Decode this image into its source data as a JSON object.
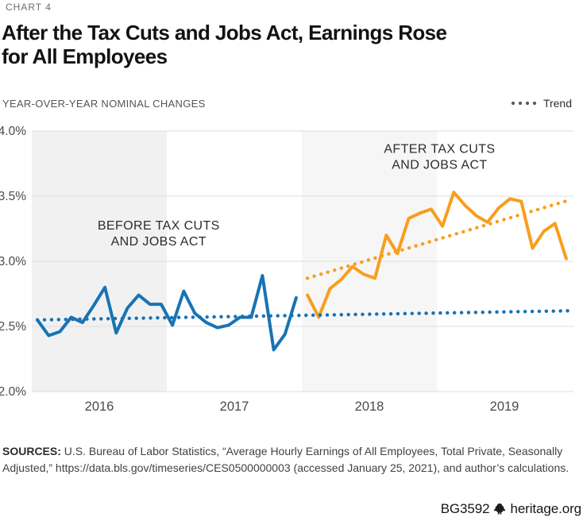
{
  "header": {
    "eyebrow": "CHART 4",
    "title_lines": [
      "After the Tax Cuts and Jobs Act, Earnings Rose",
      "for All Employees"
    ]
  },
  "subheader": {
    "kicker": "YEAR-OVER-YEAR NOMINAL CHANGES",
    "legend": {
      "label": "Trend",
      "dot_color": "#58595b"
    }
  },
  "chart_data": {
    "type": "line",
    "title": "After the Tax Cuts and Jobs Act, Earnings Rose for All Employees",
    "subtitle": "Year-over-year nominal changes",
    "xlabel": "",
    "ylabel": "",
    "ylim": [
      2.0,
      4.0
    ],
    "y_ticks": [
      {
        "value": 4.0,
        "label": "4.0%"
      },
      {
        "value": 3.5,
        "label": "3.5%"
      },
      {
        "value": 3.0,
        "label": "3.0%"
      },
      {
        "value": 2.5,
        "label": "2.5%"
      },
      {
        "value": 2.0,
        "label": "2.0%"
      }
    ],
    "x_year_labels": [
      "2016",
      "2017",
      "2018",
      "2019"
    ],
    "x_range_years": [
      2016,
      2020
    ],
    "grid": true,
    "grid_color": "#dedede",
    "axis_label_color": "#4a4a4a",
    "year_bands": [
      {
        "year": 2016,
        "color": "#f1f1f1"
      },
      {
        "year": 2018,
        "color": "#f6f6f6"
      }
    ],
    "series": [
      {
        "name": "Before Tax Cuts and Jobs Act",
        "color": "#1873B4",
        "start_month": "2016-01",
        "frequency": "monthly",
        "values": [
          2.55,
          2.43,
          2.46,
          2.57,
          2.53,
          2.66,
          2.8,
          2.45,
          2.64,
          2.74,
          2.67,
          2.67,
          2.51,
          2.77,
          2.6,
          2.53,
          2.49,
          2.51,
          2.57,
          2.57,
          2.89,
          2.32,
          2.44,
          2.72
        ]
      },
      {
        "name": "After Tax Cuts and Jobs Act",
        "color": "#F89E1C",
        "start_month": "2018-01",
        "frequency": "monthly",
        "values": [
          2.74,
          2.57,
          2.79,
          2.86,
          2.96,
          2.9,
          2.87,
          3.2,
          3.06,
          3.33,
          3.37,
          3.4,
          3.27,
          3.53,
          3.43,
          3.35,
          3.3,
          3.41,
          3.48,
          3.46,
          3.1,
          3.23,
          3.29,
          3.02
        ]
      }
    ],
    "trend_lines": [
      {
        "name": "Trend (before Tax Cuts and Jobs Act)",
        "color": "#1873B4",
        "style": "dotted",
        "start_month": "2016-01",
        "start_value": 2.55,
        "end_month": "2019-12",
        "end_value": 2.62
      },
      {
        "name": "Trend (after Tax Cuts and Jobs Act)",
        "color": "#F89E1C",
        "style": "dotted",
        "start_month": "2018-01",
        "start_value": 2.87,
        "end_month": "2019-12",
        "end_value": 3.47
      }
    ],
    "annotations": [
      {
        "lines": [
          "BEFORE TAX CUTS",
          "AND JOBS ACT"
        ],
        "x_year": 2016.94,
        "y_value": 3.2
      },
      {
        "lines": [
          "AFTER TAX CUTS",
          "AND JOBS ACT"
        ],
        "x_year": 2019.02,
        "y_value": 3.79
      }
    ],
    "legend_position": "top-right"
  },
  "footer": {
    "sources_label": "SOURCES:",
    "sources_line1": " U.S. Bureau of Labor Statistics, “Average Hourly Earnings of All Employees, Total Private, Seasonally",
    "sources_line2": "Adjusted,” https://data.bls.gov/timeseries/CES0500000003 (accessed January 25, 2021), and author’s calculations.",
    "doc_id": "BG3592",
    "site": "heritage.org"
  }
}
